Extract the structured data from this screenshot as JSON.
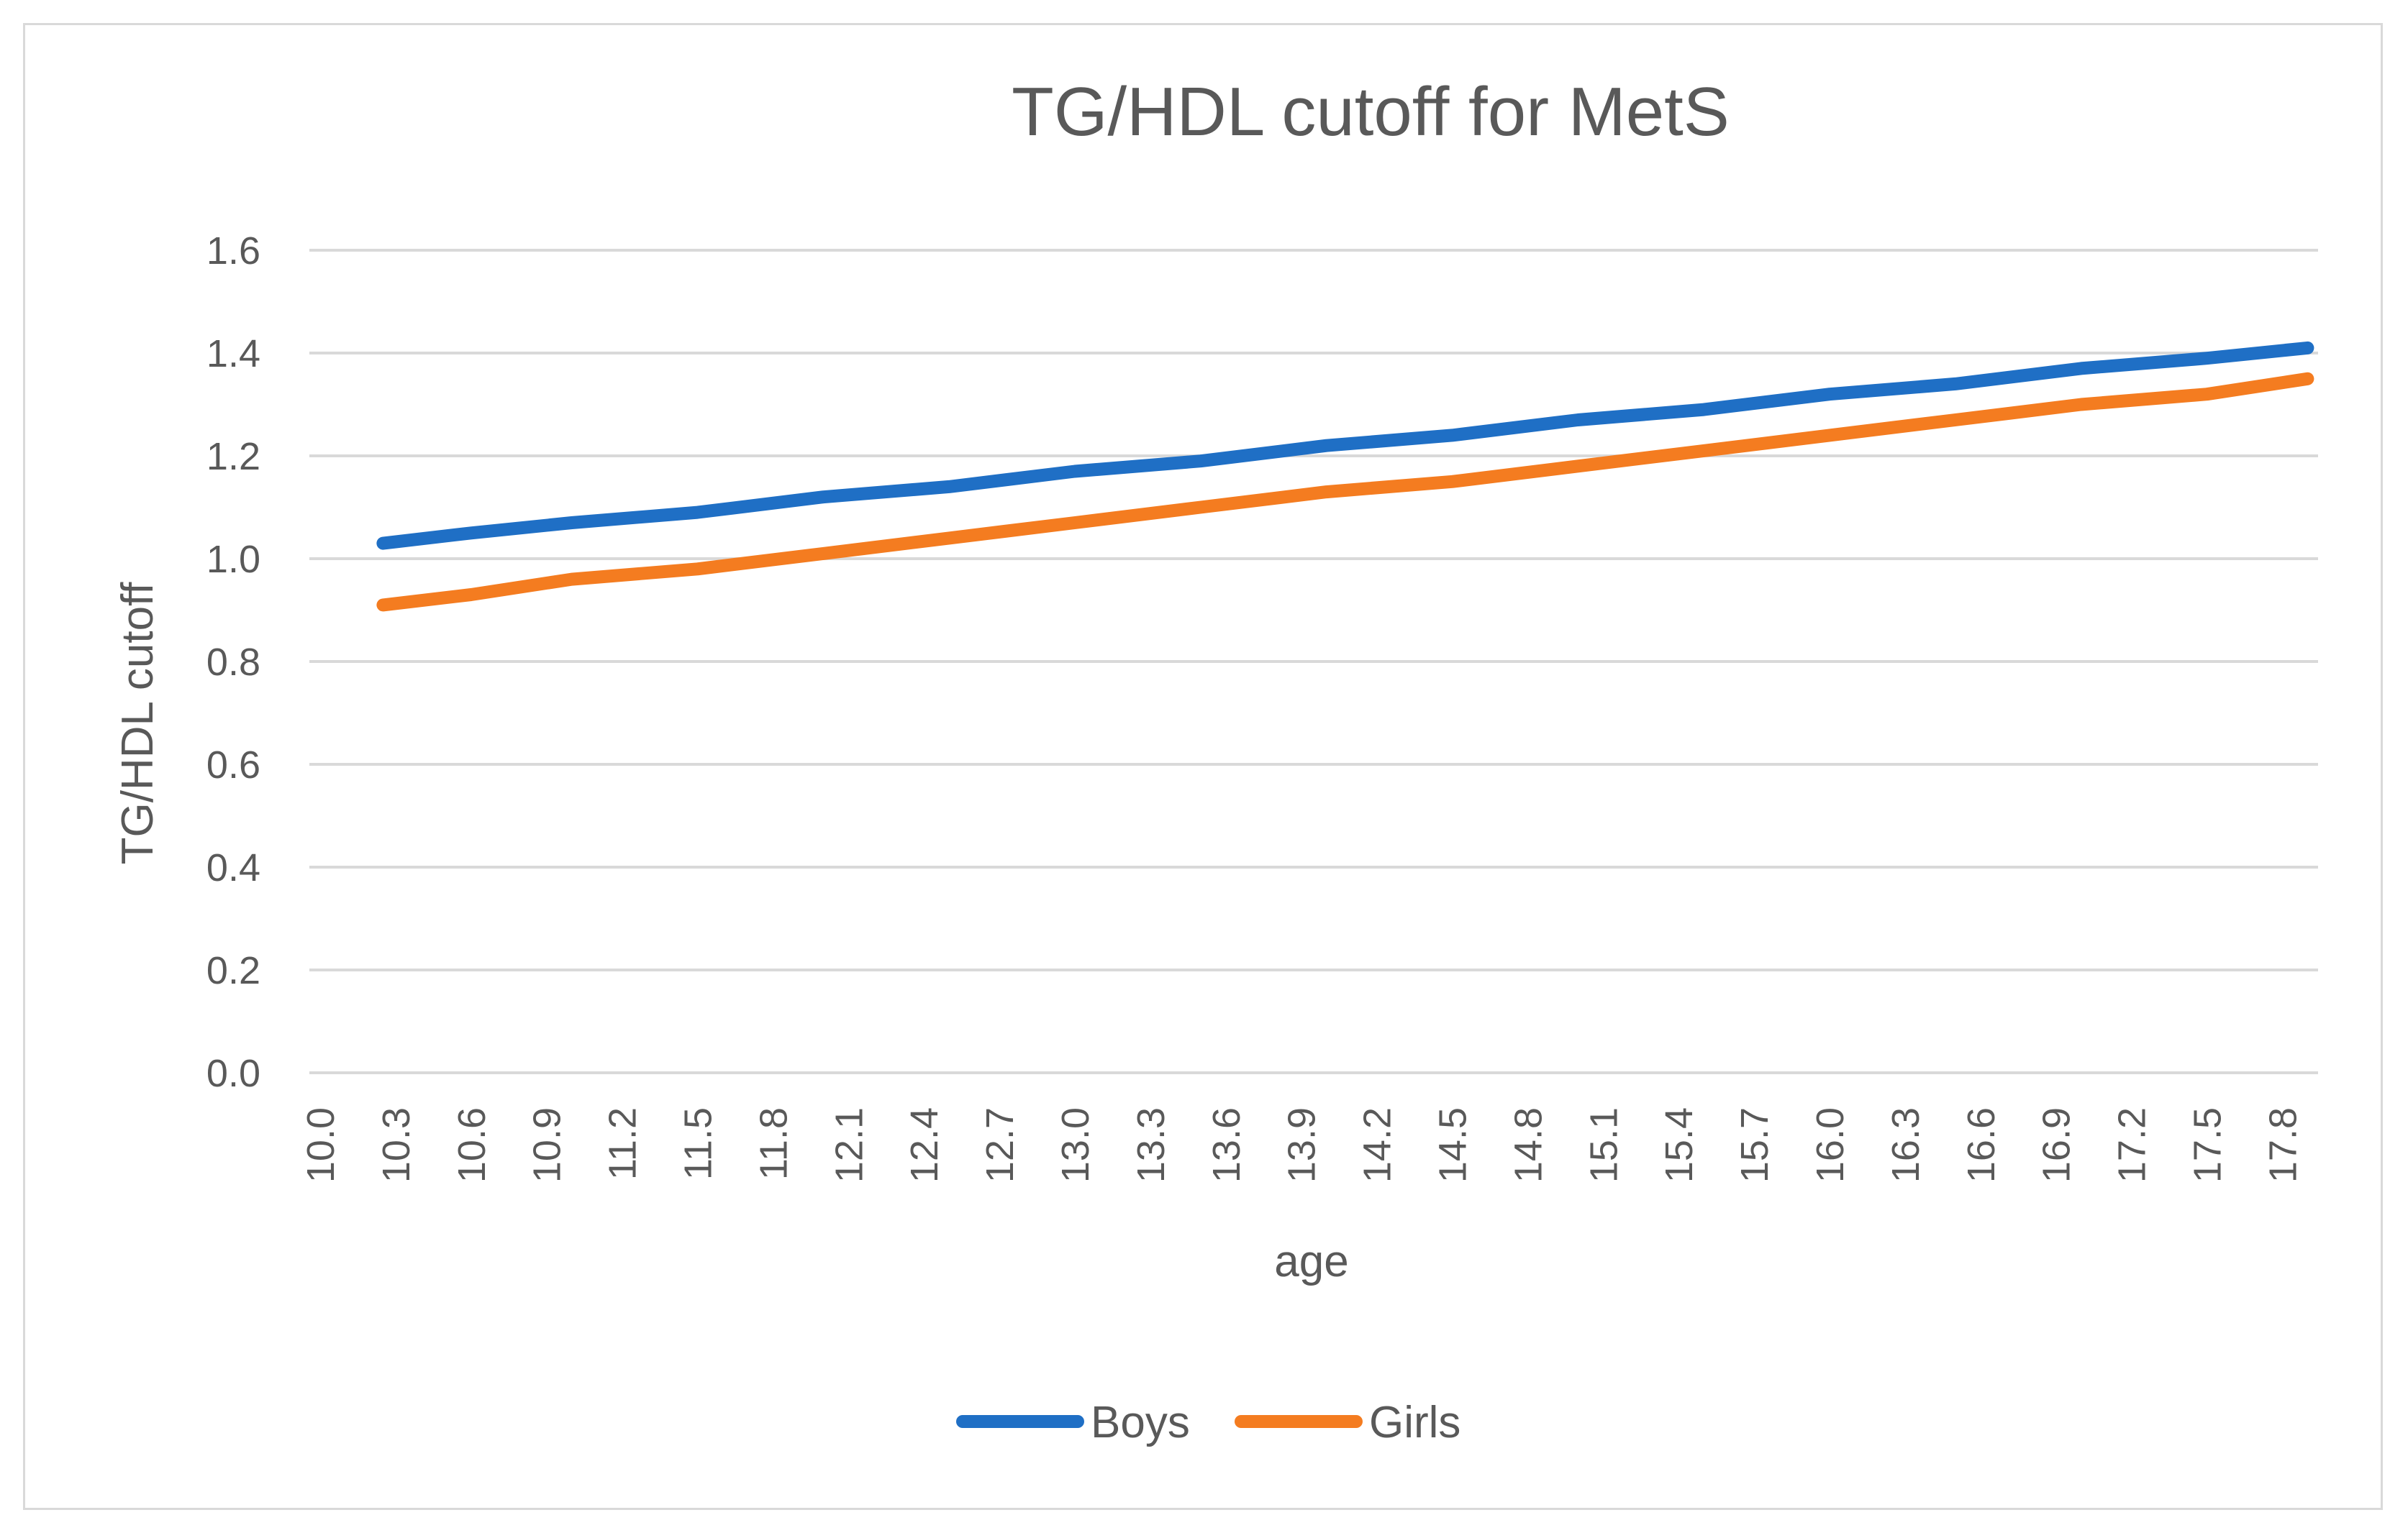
{
  "chart_data": {
    "type": "line",
    "title": "TG/HDL cutoff for MetS",
    "xlabel": "age",
    "ylabel": "TG/HDL cutoff",
    "ylim": [
      0,
      1.6
    ],
    "xlim": [
      10.0,
      17.9
    ],
    "y_ticks": [
      "0.0",
      "0.2",
      "0.4",
      "0.6",
      "0.8",
      "1.0",
      "1.2",
      "1.4",
      "1.6"
    ],
    "x_ticks": [
      "10.0",
      "10.3",
      "10.6",
      "10.9",
      "11.2",
      "11.5",
      "11.8",
      "12.1",
      "12.4",
      "12.7",
      "13.0",
      "13.3",
      "13.6",
      "13.9",
      "14.2",
      "14.5",
      "14.8",
      "15.1",
      "15.4",
      "15.7",
      "16.0",
      "16.3",
      "16.6",
      "16.9",
      "17.2",
      "17.5",
      "17.8"
    ],
    "grid": true,
    "legend_position": "bottom",
    "series": [
      {
        "name": "Boys",
        "color": "#1f6fc5",
        "x": [
          10.25,
          10.6,
          11.0,
          11.5,
          12.0,
          12.5,
          13.0,
          13.5,
          14.0,
          14.5,
          15.0,
          15.5,
          16.0,
          16.5,
          17.0,
          17.5,
          17.9
        ],
        "y": [
          1.03,
          1.05,
          1.07,
          1.09,
          1.12,
          1.14,
          1.17,
          1.19,
          1.22,
          1.24,
          1.27,
          1.29,
          1.32,
          1.34,
          1.37,
          1.39,
          1.41
        ]
      },
      {
        "name": "Girls",
        "color": "#f47c20",
        "x": [
          10.25,
          10.6,
          11.0,
          11.5,
          12.0,
          12.5,
          13.0,
          13.5,
          14.0,
          14.5,
          15.0,
          15.5,
          16.0,
          16.5,
          17.0,
          17.5,
          17.9
        ],
        "y": [
          0.91,
          0.93,
          0.96,
          0.98,
          1.01,
          1.04,
          1.07,
          1.1,
          1.13,
          1.15,
          1.18,
          1.21,
          1.24,
          1.27,
          1.3,
          1.32,
          1.35
        ]
      }
    ]
  }
}
